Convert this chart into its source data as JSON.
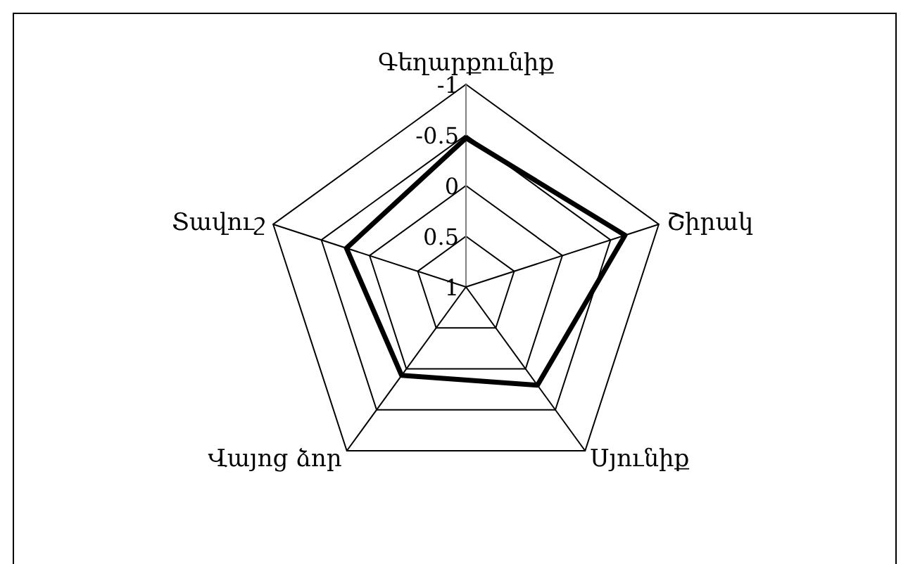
{
  "chart_data": {
    "type": "radar",
    "categories": [
      "Գեղարքունիք",
      "Շիրակ",
      "Սյունիք",
      "Վայոց ձոր",
      "Տավուշ"
    ],
    "series": [
      {
        "color": "#000000",
        "values": [
          -0.47,
          -0.65,
          -0.2,
          -0.08,
          -0.24
        ]
      }
    ],
    "ylim": [
      1,
      -1
    ],
    "yticks": [
      -1,
      -0.5,
      0,
      0.5,
      1
    ],
    "grid": true,
    "marker": "none"
  }
}
